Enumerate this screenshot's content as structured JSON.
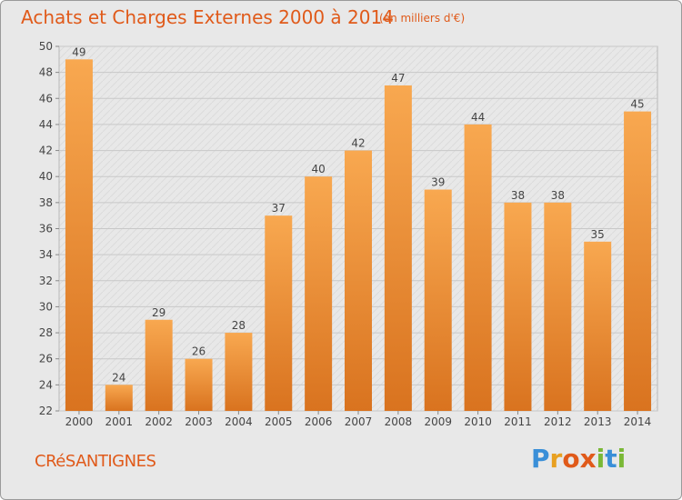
{
  "chart_data": {
    "type": "bar",
    "title": "Achats et Charges Externes 2000 à 2014",
    "subtitle": "(en milliers d'€)",
    "categories": [
      "2000",
      "2001",
      "2002",
      "2003",
      "2004",
      "2005",
      "2006",
      "2007",
      "2008",
      "2009",
      "2010",
      "2011",
      "2012",
      "2013",
      "2014"
    ],
    "values": [
      49,
      24,
      29,
      26,
      28,
      37,
      40,
      42,
      47,
      39,
      44,
      38,
      38,
      35,
      45
    ],
    "ylim": [
      22,
      50
    ],
    "yticks": [
      22,
      24,
      26,
      28,
      30,
      32,
      34,
      36,
      38,
      40,
      42,
      44,
      46,
      48,
      50
    ],
    "xlabel": "",
    "ylabel": "",
    "grid": true,
    "bar_color": "#f5a04a",
    "bar_color_dark": "#d9731f"
  },
  "commune": "CRéSANTIGNES",
  "logo": {
    "letters": [
      "P",
      "r",
      "o",
      "x",
      "i",
      "t",
      "i"
    ],
    "colors": [
      "#3a8fd8",
      "#e8a020",
      "#e05a1a",
      "#e05a1a",
      "#7ab836",
      "#3a8fd8",
      "#7ab836"
    ]
  },
  "colors": {
    "accent": "#e05a1a",
    "frame_bg": "#e8e8e8"
  }
}
